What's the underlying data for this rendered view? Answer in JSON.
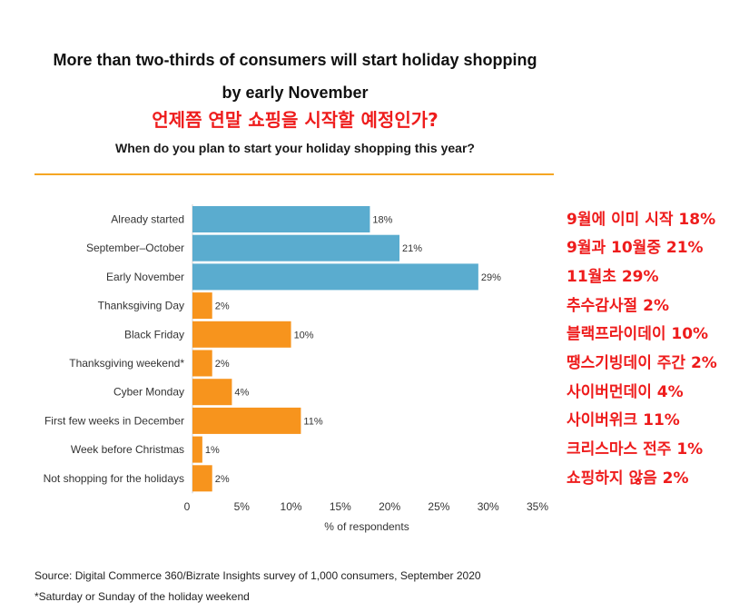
{
  "title_line1": "More than two-thirds of consumers will start holiday shopping",
  "title_line2": "by early November",
  "title_korean": "언제쯤 연말 쇼핑을 시작할 예정인가?",
  "subtitle": "When do you plan to start your holiday shopping this year?",
  "source": "Source: Digital Commerce 360/Bizrate Insights survey of 1,000 consumers, September 2020",
  "footnote": "*Saturday or Sunday of the holiday weekend",
  "colors": {
    "blue_bar": "#5aaccf",
    "orange_bar": "#f7941d",
    "divider": "#f5a623",
    "annotation": "#ee1c1c"
  },
  "korean_annotations": [
    "9월에 이미 시작 18%",
    "9월과 10월중 21%",
    "11월초 29%",
    "추수감사절 2%",
    "블랙프라이데이 10%",
    "땡스기빙데이 주간 2%",
    "사이버먼데이 4%",
    "사이버위크 11%",
    "크리스마스 전주 1%",
    "쇼핑하지 않음 2%"
  ],
  "chart_data": {
    "type": "bar",
    "orientation": "horizontal",
    "title": "More than two-thirds of consumers will start holiday shopping by early November",
    "subtitle": "When do you plan to start your holiday shopping this year?",
    "xlabel": "% of respondents",
    "ylabel": "",
    "xlim": [
      0,
      35
    ],
    "x_ticks": [
      "0",
      "5%",
      "10%",
      "15%",
      "20%",
      "25%",
      "30%",
      "35%"
    ],
    "x_tick_values": [
      0,
      5,
      10,
      15,
      20,
      25,
      30,
      35
    ],
    "grid": false,
    "categories": [
      "Already started",
      "September–October",
      "Early November",
      "Thanksgiving Day",
      "Black Friday",
      "Thanksgiving weekend*",
      "Cyber Monday",
      "First few weeks in December",
      "Week before Christmas",
      "Not shopping for the holidays"
    ],
    "values": [
      18,
      21,
      29,
      2,
      10,
      2,
      4,
      11,
      1,
      2
    ],
    "value_labels": [
      "18%",
      "21%",
      "29%",
      "2%",
      "10%",
      "2%",
      "4%",
      "11%",
      "1%",
      "2%"
    ],
    "bar_colors": [
      "#5aaccf",
      "#5aaccf",
      "#5aaccf",
      "#f7941d",
      "#f7941d",
      "#f7941d",
      "#f7941d",
      "#f7941d",
      "#f7941d",
      "#f7941d"
    ]
  }
}
